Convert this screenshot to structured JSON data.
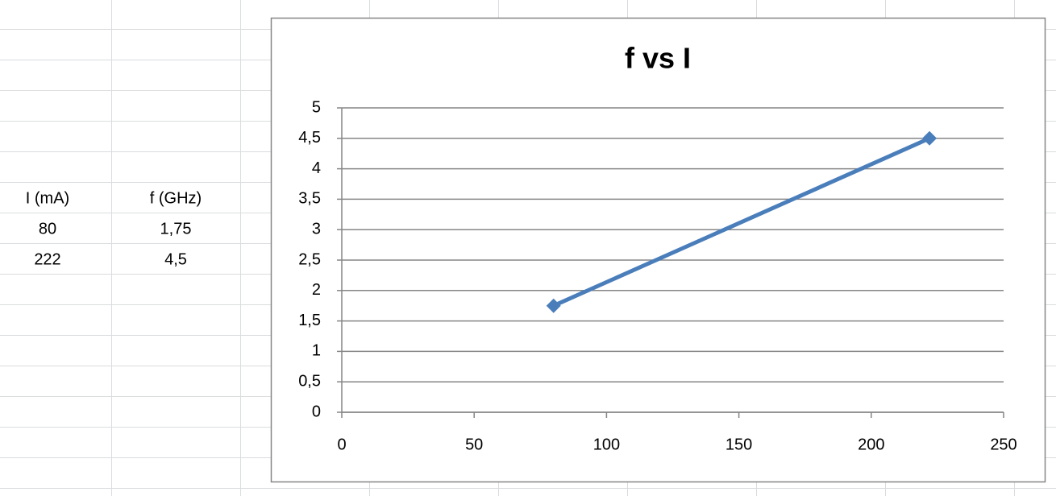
{
  "table": {
    "rows": [
      [
        "I (mA)",
        "f (GHz)"
      ],
      [
        "80",
        "1,75"
      ],
      [
        "222",
        "4,5"
      ]
    ]
  },
  "chart_data": {
    "type": "line",
    "title": "f vs I",
    "x": [
      80,
      222
    ],
    "series": [
      {
        "color": "#4a7ebb",
        "values": [
          1.75,
          4.5
        ]
      }
    ],
    "xlim": [
      0,
      250
    ],
    "xticks": [
      0,
      50,
      100,
      150,
      200,
      250
    ],
    "ylim": [
      0,
      5
    ],
    "yticks": [
      0,
      {
        "value": 0.5,
        "label": "0,5"
      },
      1,
      {
        "value": 1.5,
        "label": "1,5"
      },
      2,
      {
        "value": 2.5,
        "label": "2,5"
      },
      3,
      {
        "value": 3.5,
        "label": "3,5"
      },
      4,
      {
        "value": 4.5,
        "label": "4,5"
      },
      5
    ],
    "grid": true
  }
}
